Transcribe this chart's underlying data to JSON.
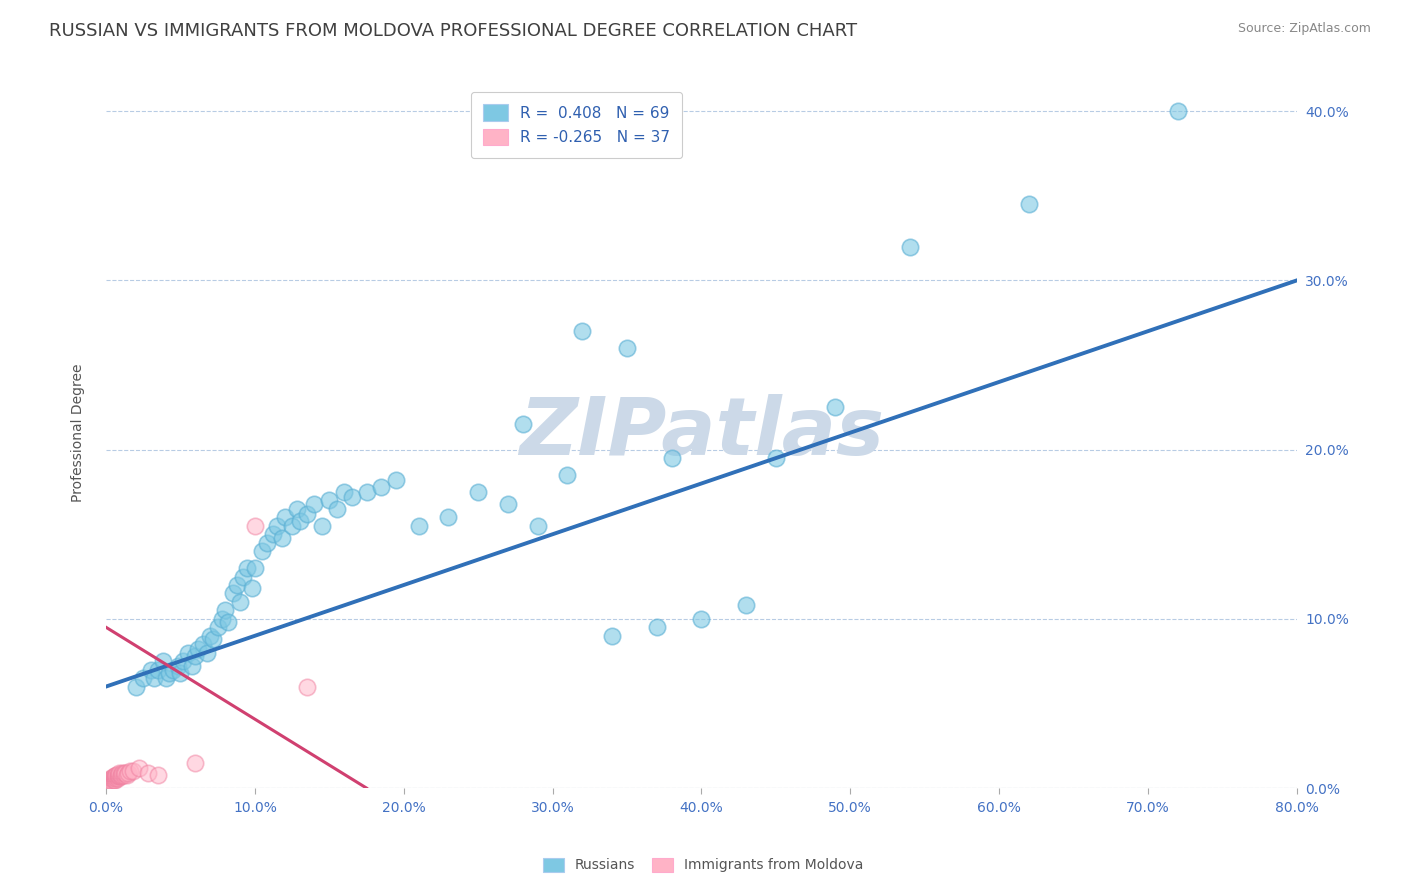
{
  "title": "RUSSIAN VS IMMIGRANTS FROM MOLDOVA PROFESSIONAL DEGREE CORRELATION CHART",
  "source": "Source: ZipAtlas.com",
  "ylabel": "Professional Degree",
  "xlim": [
    0.0,
    0.8
  ],
  "ylim": [
    0.0,
    0.42
  ],
  "xticks": [
    0.0,
    0.1,
    0.2,
    0.3,
    0.4,
    0.5,
    0.6,
    0.7,
    0.8
  ],
  "xticklabels": [
    "0.0%",
    "10.0%",
    "20.0%",
    "30.0%",
    "40.0%",
    "50.0%",
    "60.0%",
    "70.0%",
    "80.0%"
  ],
  "yticks": [
    0.0,
    0.1,
    0.2,
    0.3,
    0.4
  ],
  "yticklabels": [
    "0.0%",
    "10.0%",
    "20.0%",
    "30.0%",
    "40.0%"
  ],
  "legend_r1": "R =  0.408",
  "legend_n1": "N = 69",
  "legend_r2": "R = -0.265",
  "legend_n2": "N = 37",
  "blue_color": "#7ec8e3",
  "blue_edge_color": "#5aafd4",
  "pink_color": "#ffb3c6",
  "pink_edge_color": "#f080a0",
  "blue_line_color": "#3070b8",
  "pink_line_color": "#d04070",
  "watermark": "ZIPatlas",
  "watermark_color": "#ccd9e8",
  "title_fontsize": 13,
  "axis_label_fontsize": 10,
  "tick_fontsize": 10,
  "blue_scatter_x": [
    0.02,
    0.025,
    0.03,
    0.032,
    0.035,
    0.038,
    0.04,
    0.042,
    0.045,
    0.048,
    0.05,
    0.052,
    0.055,
    0.058,
    0.06,
    0.062,
    0.065,
    0.068,
    0.07,
    0.072,
    0.075,
    0.078,
    0.08,
    0.082,
    0.085,
    0.088,
    0.09,
    0.092,
    0.095,
    0.098,
    0.1,
    0.105,
    0.108,
    0.112,
    0.115,
    0.118,
    0.12,
    0.125,
    0.128,
    0.13,
    0.135,
    0.14,
    0.145,
    0.15,
    0.155,
    0.16,
    0.165,
    0.175,
    0.185,
    0.195,
    0.21,
    0.23,
    0.25,
    0.27,
    0.29,
    0.31,
    0.34,
    0.37,
    0.4,
    0.43,
    0.28,
    0.32,
    0.35,
    0.38,
    0.45,
    0.49,
    0.54,
    0.62,
    0.72
  ],
  "blue_scatter_y": [
    0.06,
    0.065,
    0.07,
    0.065,
    0.07,
    0.075,
    0.065,
    0.068,
    0.07,
    0.072,
    0.068,
    0.075,
    0.08,
    0.072,
    0.078,
    0.082,
    0.085,
    0.08,
    0.09,
    0.088,
    0.095,
    0.1,
    0.105,
    0.098,
    0.115,
    0.12,
    0.11,
    0.125,
    0.13,
    0.118,
    0.13,
    0.14,
    0.145,
    0.15,
    0.155,
    0.148,
    0.16,
    0.155,
    0.165,
    0.158,
    0.162,
    0.168,
    0.155,
    0.17,
    0.165,
    0.175,
    0.172,
    0.175,
    0.178,
    0.182,
    0.155,
    0.16,
    0.175,
    0.168,
    0.155,
    0.185,
    0.09,
    0.095,
    0.1,
    0.108,
    0.215,
    0.27,
    0.26,
    0.195,
    0.195,
    0.225,
    0.32,
    0.345,
    0.4
  ],
  "pink_scatter_x": [
    0.002,
    0.003,
    0.003,
    0.004,
    0.004,
    0.005,
    0.005,
    0.005,
    0.006,
    0.006,
    0.006,
    0.007,
    0.007,
    0.007,
    0.008,
    0.008,
    0.008,
    0.009,
    0.009,
    0.009,
    0.01,
    0.01,
    0.011,
    0.011,
    0.012,
    0.012,
    0.013,
    0.014,
    0.015,
    0.016,
    0.018,
    0.022,
    0.028,
    0.035,
    0.06,
    0.1,
    0.135
  ],
  "pink_scatter_y": [
    0.005,
    0.004,
    0.006,
    0.005,
    0.006,
    0.005,
    0.006,
    0.007,
    0.005,
    0.006,
    0.007,
    0.006,
    0.007,
    0.008,
    0.006,
    0.007,
    0.008,
    0.007,
    0.008,
    0.009,
    0.007,
    0.008,
    0.008,
    0.009,
    0.008,
    0.009,
    0.009,
    0.008,
    0.009,
    0.01,
    0.01,
    0.012,
    0.009,
    0.008,
    0.015,
    0.155,
    0.06
  ],
  "blue_line_x": [
    0.0,
    0.8
  ],
  "blue_line_y": [
    0.06,
    0.3
  ],
  "pink_line_x": [
    0.0,
    0.175
  ],
  "pink_line_y": [
    0.095,
    0.0
  ]
}
